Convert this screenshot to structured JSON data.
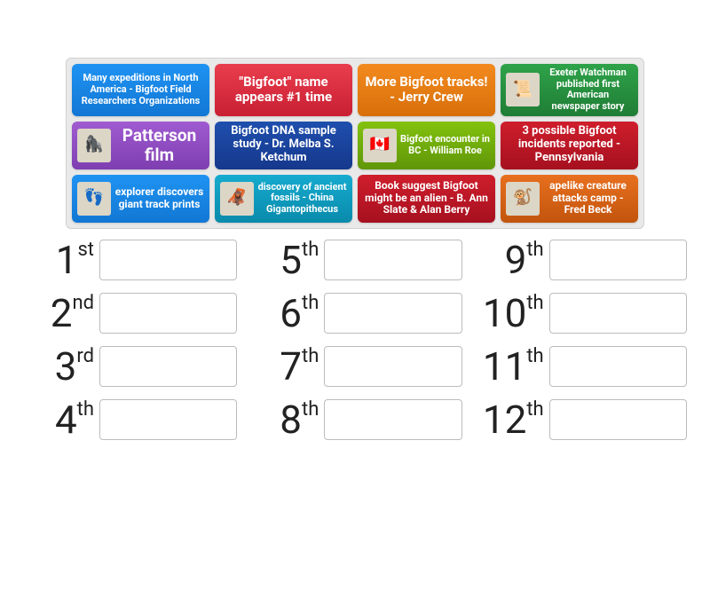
{
  "bank": {
    "cards": [
      {
        "text": "Many expeditions in North America - Bigfoot Field Researchers Organizations",
        "colorClass": "c-blue",
        "fontSize": 11,
        "hasThumb": false,
        "thumb": ""
      },
      {
        "text": "\"Bigfoot\" name appears #1 time",
        "colorClass": "c-red",
        "fontSize": 15,
        "hasThumb": false,
        "thumb": ""
      },
      {
        "text": "More Bigfoot tracks! - Jerry Crew",
        "colorClass": "c-orange",
        "fontSize": 15,
        "hasThumb": false,
        "thumb": ""
      },
      {
        "text": "Exeter Watchman published first American newspaper story",
        "colorClass": "c-green",
        "fontSize": 11,
        "hasThumb": true,
        "thumb": "📜"
      },
      {
        "text": "Patterson film",
        "colorClass": "c-purple",
        "fontSize": 19,
        "hasThumb": true,
        "thumb": "🦍"
      },
      {
        "text": "Bigfoot DNA sample study - Dr. Melba S. Ketchum",
        "colorClass": "c-dblue",
        "fontSize": 13,
        "hasThumb": false,
        "thumb": ""
      },
      {
        "text": "Bigfoot encounter in BC - William Roe",
        "colorClass": "c-lime",
        "fontSize": 11,
        "hasThumb": true,
        "thumb": "🇨🇦"
      },
      {
        "text": "3 possible Bigfoot incidents reported - Pennsylvania",
        "colorClass": "c-dred",
        "fontSize": 13,
        "hasThumb": false,
        "thumb": ""
      },
      {
        "text": "explorer discovers giant track prints",
        "colorClass": "c-blue",
        "fontSize": 12,
        "hasThumb": true,
        "thumb": "👣"
      },
      {
        "text": "discovery of ancient fossils - China Gigantopithecus",
        "colorClass": "c-cyan",
        "fontSize": 11,
        "hasThumb": true,
        "thumb": "🦧"
      },
      {
        "text": "Book suggest Bigfoot might be an alien - B. Ann Slate & Alan Berry",
        "colorClass": "c-dred",
        "fontSize": 12,
        "hasThumb": false,
        "thumb": ""
      },
      {
        "text": "apelike creature attacks camp - Fred Beck",
        "colorClass": "c-dorange",
        "fontSize": 12,
        "hasThumb": true,
        "thumb": "🐒"
      }
    ]
  },
  "slots": [
    {
      "num": "1",
      "suffix": "st"
    },
    {
      "num": "2",
      "suffix": "nd"
    },
    {
      "num": "3",
      "suffix": "rd"
    },
    {
      "num": "4",
      "suffix": "th"
    },
    {
      "num": "5",
      "suffix": "th"
    },
    {
      "num": "6",
      "suffix": "th"
    },
    {
      "num": "7",
      "suffix": "th"
    },
    {
      "num": "8",
      "suffix": "th"
    },
    {
      "num": "9",
      "suffix": "th"
    },
    {
      "num": "10",
      "suffix": "th"
    },
    {
      "num": "11",
      "suffix": "th"
    },
    {
      "num": "12",
      "suffix": "th"
    }
  ]
}
